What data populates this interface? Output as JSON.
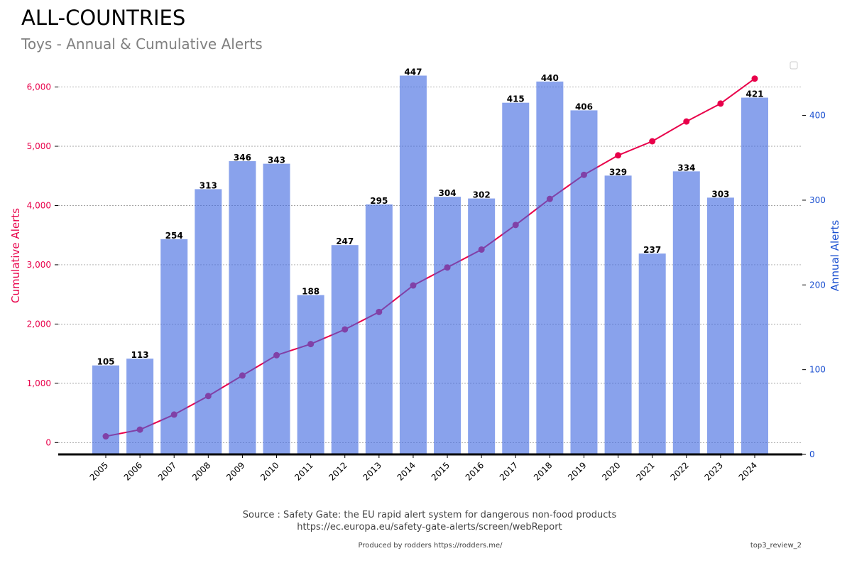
{
  "header": {
    "title": "ALL-COUNTRIES",
    "subtitle": "Toys - Annual & Cumulative Alerts"
  },
  "footer": {
    "source_line1": "Source : Safety Gate: the EU rapid alert system for dangerous non-food products",
    "source_line2": "https://ec.europa.eu/safety-gate-alerts/screen/webReport",
    "produced_by": "Produced by rodders https://rodders.me/",
    "tag": "top3_review_2"
  },
  "colors": {
    "bars": "#4169e1",
    "line": "#e8004a",
    "left_axis": "#e8004a",
    "right_axis": "#1a4fd0"
  },
  "chart_data": {
    "type": "bar",
    "categories": [
      "2005",
      "2006",
      "2007",
      "2008",
      "2009",
      "2010",
      "2011",
      "2012",
      "2013",
      "2014",
      "2015",
      "2016",
      "2017",
      "2018",
      "2019",
      "2020",
      "2021",
      "2022",
      "2023",
      "2024"
    ],
    "series": [
      {
        "name": "Annual Alerts",
        "type": "bar",
        "axis": "right",
        "values": [
          105,
          113,
          254,
          313,
          346,
          343,
          188,
          247,
          295,
          447,
          304,
          302,
          415,
          440,
          406,
          329,
          237,
          334,
          303,
          421
        ]
      },
      {
        "name": "Cumulative Alerts",
        "type": "line",
        "axis": "left",
        "values": [
          105,
          218,
          472,
          785,
          1131,
          1474,
          1662,
          1909,
          2204,
          2651,
          2955,
          3257,
          3672,
          4112,
          4518,
          4847,
          5084,
          5418,
          5721,
          6142
        ]
      }
    ],
    "ylabel_left": "Cumulative Alerts",
    "ylabel_right": "Annual Alerts",
    "yticks_left": [
      0,
      1000,
      2000,
      3000,
      4000,
      5000,
      6000
    ],
    "yticks_left_labels": [
      "0",
      "1,000",
      "2,000",
      "3,000",
      "4,000",
      "5,000",
      "6,000"
    ],
    "yticks_right": [
      0,
      100,
      200,
      300,
      400
    ],
    "yticks_right_labels": [
      "0",
      "100",
      "200",
      "300",
      "400"
    ],
    "ylim_left": [
      -200,
      6450
    ],
    "ylim_right": [
      0,
      465
    ],
    "grid": true,
    "legend": "top-right (empty)"
  }
}
